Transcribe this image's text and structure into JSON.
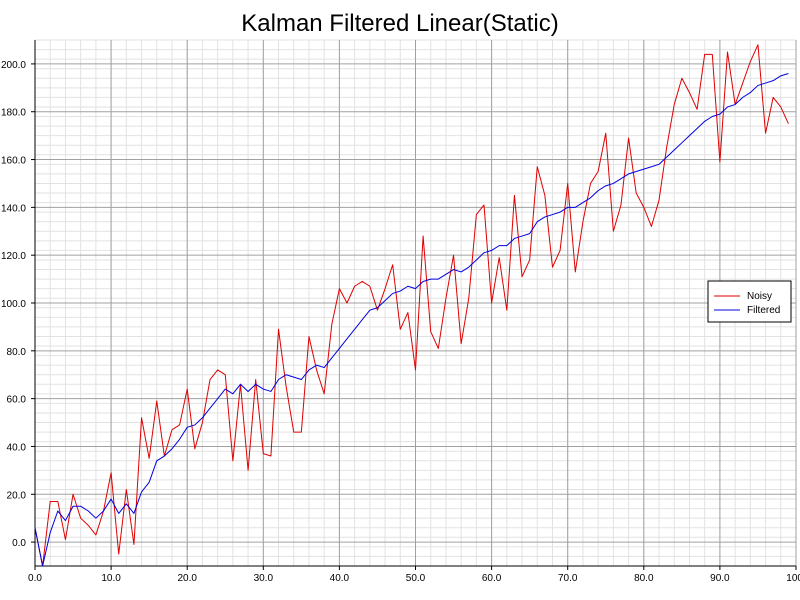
{
  "chart_data": {
    "type": "line",
    "title": "Kalman Filtered Linear(Static)",
    "xlabel": "",
    "ylabel": "",
    "xlim": [
      0,
      100
    ],
    "ylim": [
      -10,
      210
    ],
    "grid": true,
    "legend_position": "right",
    "x_ticks": [
      "0.0",
      "10.0",
      "20.0",
      "30.0",
      "40.0",
      "50.0",
      "60.0",
      "70.0",
      "80.0",
      "90.0",
      "100."
    ],
    "y_ticks": [
      "0.0",
      "20.0",
      "40.0",
      "60.0",
      "80.0",
      "100.0",
      "120.0",
      "140.0",
      "160.0",
      "180.0",
      "200.0"
    ],
    "series": [
      {
        "name": "Noisy",
        "color": "#e00000",
        "x": [
          0,
          1,
          2,
          3,
          4,
          5,
          6,
          7,
          8,
          9,
          10,
          11,
          12,
          13,
          14,
          15,
          16,
          17,
          18,
          19,
          20,
          21,
          22,
          23,
          24,
          25,
          26,
          27,
          28,
          29,
          30,
          31,
          32,
          33,
          34,
          35,
          36,
          37,
          38,
          39,
          40,
          41,
          42,
          43,
          44,
          45,
          46,
          47,
          48,
          49,
          50,
          51,
          52,
          53,
          54,
          55,
          56,
          57,
          58,
          59,
          60,
          61,
          62,
          63,
          64,
          65,
          66,
          67,
          68,
          69,
          70,
          71,
          72,
          73,
          74,
          75,
          76,
          77,
          78,
          79,
          80,
          81,
          82,
          83,
          84,
          85,
          86,
          87,
          88,
          89,
          90,
          91,
          92,
          93,
          94,
          95,
          96,
          97,
          98,
          99
        ],
        "values": [
          6,
          -10,
          17,
          17,
          1,
          20,
          10,
          7,
          3,
          13,
          29,
          -5,
          22,
          -1,
          52,
          35,
          59,
          36,
          47,
          49,
          64,
          39,
          50,
          68,
          72,
          70,
          34,
          66,
          30,
          68,
          37,
          36,
          89,
          65,
          46,
          46,
          86,
          72,
          62,
          91,
          106,
          100,
          107,
          109,
          107,
          97,
          106,
          116,
          89,
          96,
          72,
          128,
          88,
          81,
          102,
          120,
          83,
          102,
          137,
          141,
          100,
          119,
          97,
          145,
          111,
          118,
          157,
          145,
          115,
          122,
          150,
          113,
          134,
          150,
          155,
          171,
          130,
          141,
          169,
          146,
          140,
          132,
          143,
          165,
          183,
          194,
          188,
          181,
          204,
          204,
          159,
          205,
          183,
          192,
          201,
          208,
          171,
          186,
          182,
          175
        ]
      },
      {
        "name": "Filtered",
        "color": "#0000e0",
        "x": [
          0,
          1,
          2,
          3,
          4,
          5,
          6,
          7,
          8,
          9,
          10,
          11,
          12,
          13,
          14,
          15,
          16,
          17,
          18,
          19,
          20,
          21,
          22,
          23,
          24,
          25,
          26,
          27,
          28,
          29,
          30,
          31,
          32,
          33,
          34,
          35,
          36,
          37,
          38,
          39,
          40,
          41,
          42,
          43,
          44,
          45,
          46,
          47,
          48,
          49,
          50,
          51,
          52,
          53,
          54,
          55,
          56,
          57,
          58,
          59,
          60,
          61,
          62,
          63,
          64,
          65,
          66,
          67,
          68,
          69,
          70,
          71,
          72,
          73,
          74,
          75,
          76,
          77,
          78,
          79,
          80,
          81,
          82,
          83,
          84,
          85,
          86,
          87,
          88,
          89,
          90,
          91,
          92,
          93,
          94,
          95,
          96,
          97,
          98,
          99
        ],
        "values": [
          6,
          -10,
          4,
          13,
          9,
          15,
          15,
          13,
          10,
          13,
          18,
          12,
          16,
          12,
          21,
          25,
          34,
          36,
          39,
          43,
          48,
          49,
          52,
          56,
          60,
          64,
          62,
          66,
          63,
          66,
          64,
          63,
          68,
          70,
          69,
          68,
          72,
          74,
          73,
          77,
          81,
          85,
          89,
          93,
          97,
          98,
          101,
          104,
          105,
          107,
          106,
          109,
          110,
          110,
          112,
          114,
          113,
          115,
          118,
          121,
          122,
          124,
          124,
          127,
          128,
          129,
          134,
          136,
          137,
          138,
          140,
          140,
          142,
          144,
          147,
          149,
          150,
          152,
          154,
          155,
          156,
          157,
          158,
          161,
          164,
          167,
          170,
          173,
          176,
          178,
          179,
          182,
          183,
          186,
          188,
          191,
          192,
          193,
          195,
          196
        ]
      }
    ]
  }
}
